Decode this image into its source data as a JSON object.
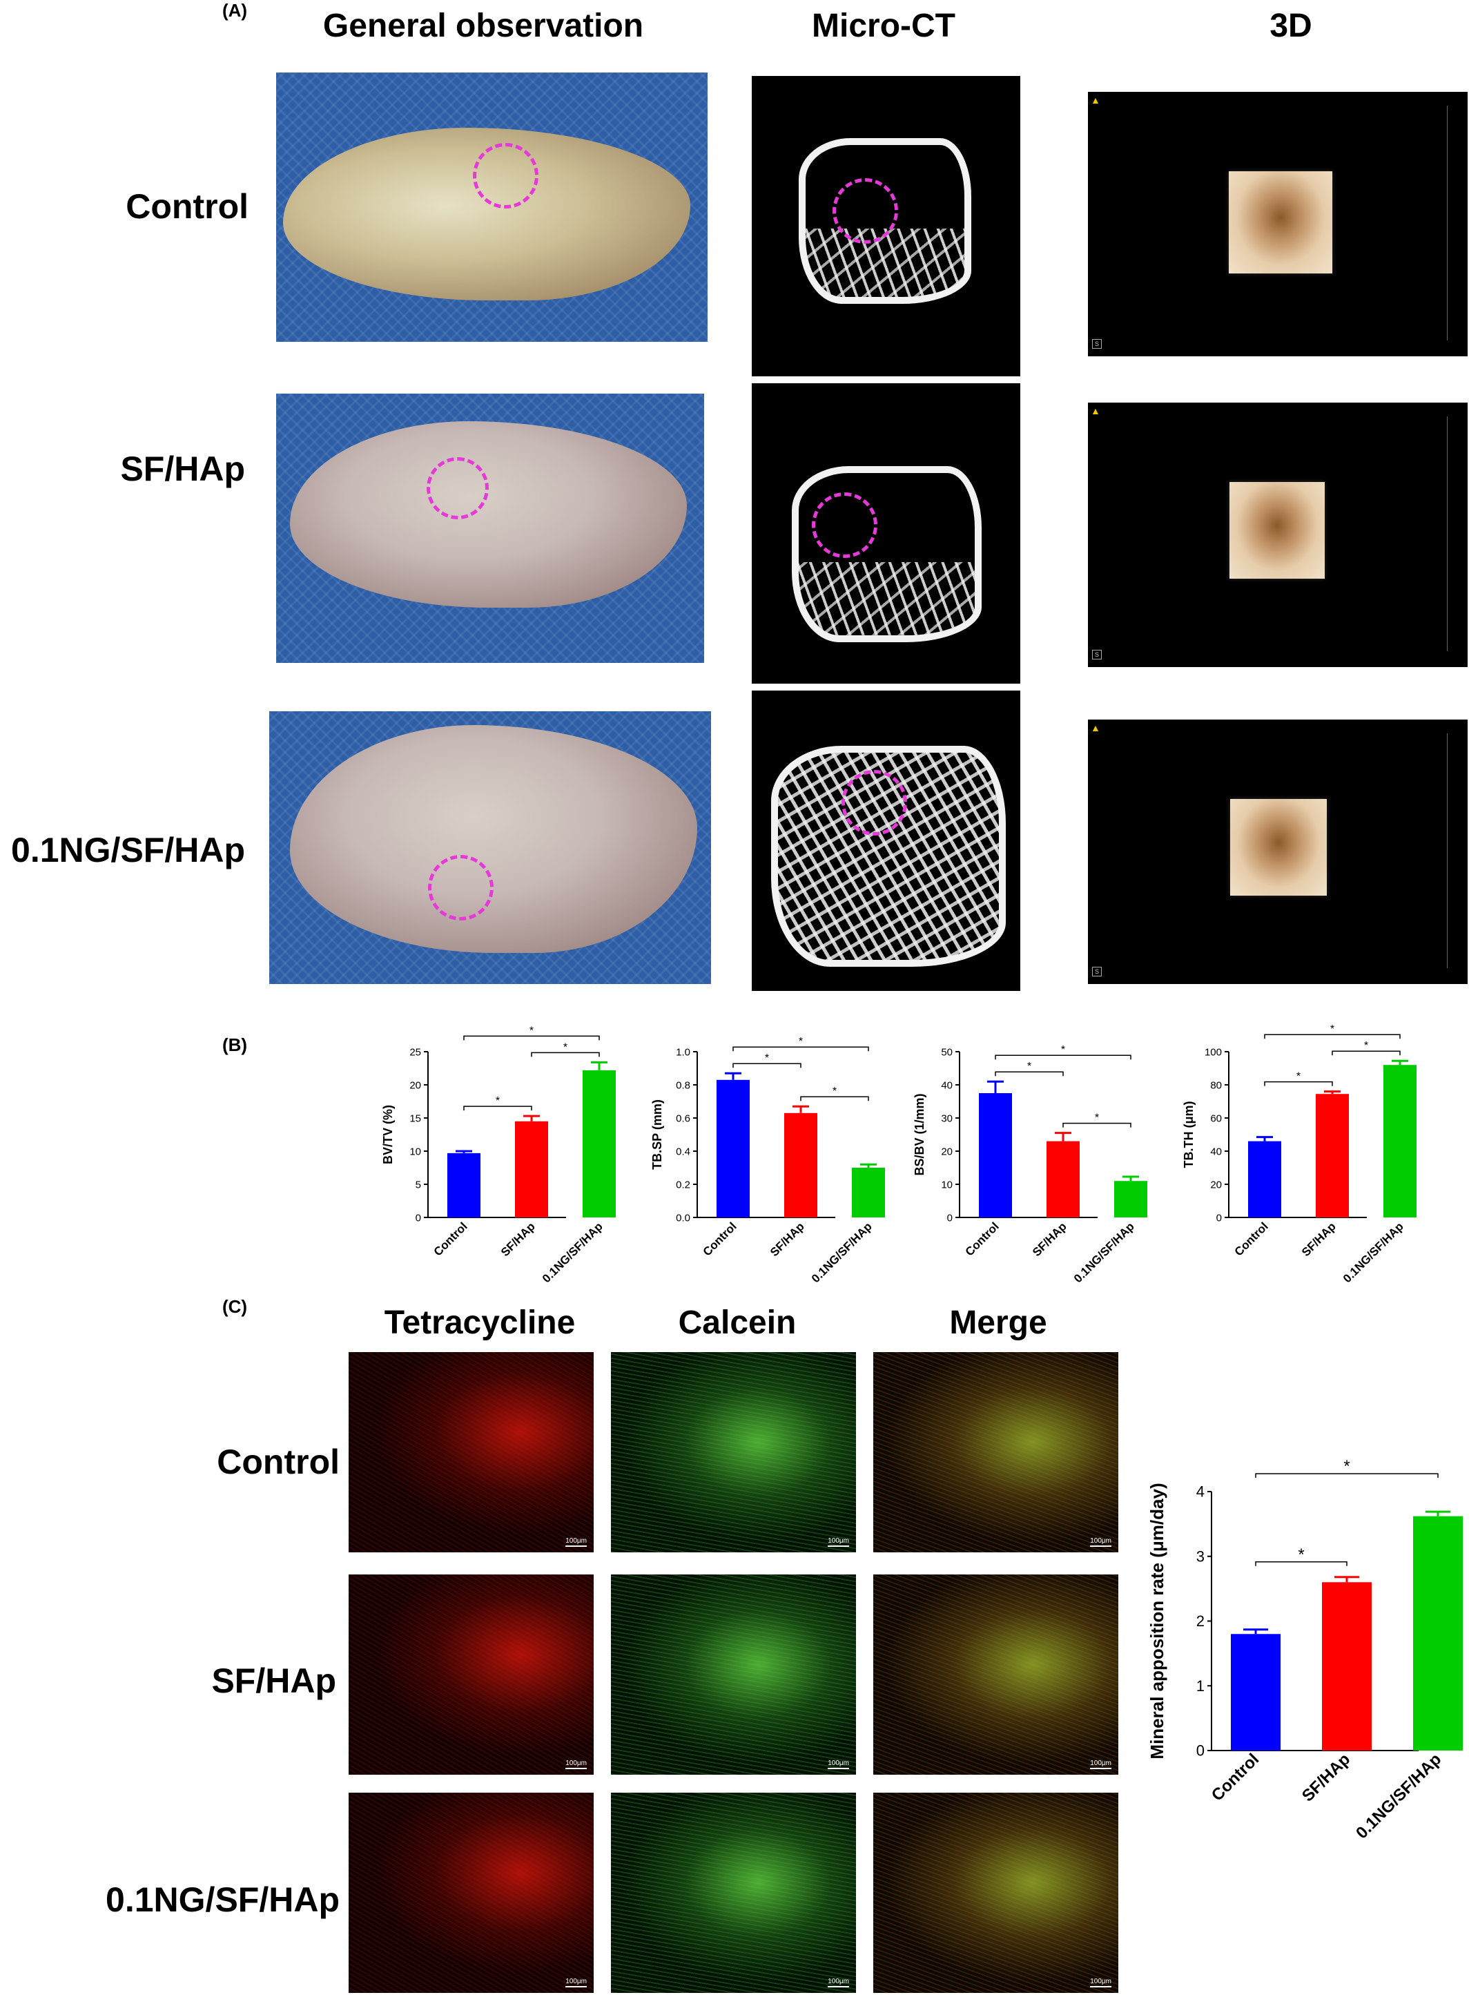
{
  "panels": {
    "A": "(A)",
    "B": "(B)",
    "C": "(C)"
  },
  "sectionA": {
    "columns": [
      "General observation",
      "Micro-CT",
      "3D"
    ],
    "rows": [
      "Control",
      "SF/HAp",
      "0.1NG/SF/HAp"
    ]
  },
  "sectionC": {
    "columns": [
      "Tetracycline",
      "Calcein",
      "Merge"
    ],
    "rows": [
      "Control",
      "SF/HAp",
      "0.1NG/SF/HAp"
    ],
    "scale_bar": "100μm"
  },
  "colors": {
    "control": "#0000ff",
    "sfhap": "#ff0000",
    "ng": "#00cc00"
  },
  "chart_data": [
    {
      "type": "bar",
      "categories": [
        "Control",
        "SF/HAp",
        "0.1NG/SF/HAp"
      ],
      "values": [
        9.7,
        14.5,
        22.2
      ],
      "errors": [
        0.3,
        0.8,
        1.2
      ],
      "ylabel": "BV/TV (%)",
      "ylim": [
        0,
        25
      ],
      "yticks": [
        0,
        5,
        10,
        15,
        20,
        25
      ],
      "significance": [
        {
          "from": 0,
          "to": 1,
          "label": "*"
        },
        {
          "from": 1,
          "to": 2,
          "label": "*"
        },
        {
          "from": 0,
          "to": 2,
          "label": "*"
        }
      ]
    },
    {
      "type": "bar",
      "categories": [
        "Control",
        "SF/HAp",
        "0.1NG/SF/HAp"
      ],
      "values": [
        0.83,
        0.63,
        0.3
      ],
      "errors": [
        0.04,
        0.04,
        0.02
      ],
      "ylabel": "TB.SP (mm)",
      "ylim": [
        0,
        1.0
      ],
      "yticks": [
        0.0,
        0.2,
        0.4,
        0.6,
        0.8,
        1.0
      ],
      "significance": [
        {
          "from": 0,
          "to": 1,
          "label": "*"
        },
        {
          "from": 1,
          "to": 2,
          "label": "*"
        },
        {
          "from": 0,
          "to": 2,
          "label": "*"
        }
      ]
    },
    {
      "type": "bar",
      "categories": [
        "Control",
        "SF/HAp",
        "0.1NG/SF/HAp"
      ],
      "values": [
        37.5,
        23,
        11
      ],
      "errors": [
        3.5,
        2.5,
        1.3
      ],
      "ylabel": "BS/BV (1/mm)",
      "ylim": [
        0,
        50
      ],
      "yticks": [
        0,
        10,
        20,
        30,
        40,
        50
      ],
      "significance": [
        {
          "from": 0,
          "to": 1,
          "label": "*"
        },
        {
          "from": 1,
          "to": 2,
          "label": "*"
        },
        {
          "from": 0,
          "to": 2,
          "label": "*"
        }
      ]
    },
    {
      "type": "bar",
      "categories": [
        "Control",
        "SF/HAp",
        "0.1NG/SF/HAp"
      ],
      "values": [
        46,
        74.5,
        92
      ],
      "errors": [
        2.5,
        1.5,
        2.5
      ],
      "ylabel": "TB.TH (μm)",
      "ylim": [
        0,
        100
      ],
      "yticks": [
        0,
        20,
        40,
        60,
        80,
        100
      ],
      "significance": [
        {
          "from": 0,
          "to": 1,
          "label": "*"
        },
        {
          "from": 1,
          "to": 2,
          "label": "*"
        },
        {
          "from": 0,
          "to": 2,
          "label": "*"
        }
      ]
    },
    {
      "type": "bar",
      "categories": [
        "Control",
        "SF/HAp",
        "0.1NG/SF/HAp"
      ],
      "values": [
        1.8,
        2.6,
        3.62
      ],
      "errors": [
        0.07,
        0.08,
        0.07
      ],
      "ylabel": "Mineral apposition rate (μm/day)",
      "ylim": [
        0,
        4
      ],
      "yticks": [
        0,
        1,
        2,
        3,
        4
      ],
      "significance": [
        {
          "from": 0,
          "to": 1,
          "label": "*"
        },
        {
          "from": 0,
          "to": 2,
          "label": "*"
        }
      ]
    }
  ]
}
